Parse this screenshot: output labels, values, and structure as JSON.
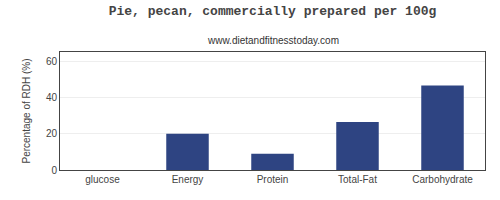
{
  "chart_data": {
    "type": "bar",
    "title": "Pie, pecan, commercially prepared per 100g",
    "subtitle": "www.dietandfitnesstoday.com",
    "categories": [
      "glucose",
      "Energy",
      "Protein",
      "Total-Fat",
      "Carbohydrate"
    ],
    "values": [
      0,
      20,
      9,
      26.5,
      46.5
    ],
    "color": "#2e4482",
    "ylabel": "Percentage of RDH (%)",
    "ylim": [
      0,
      65
    ],
    "yticks": [
      0,
      20,
      40,
      60
    ],
    "grid": true
  }
}
